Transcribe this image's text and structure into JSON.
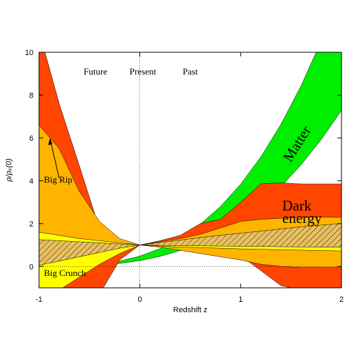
{
  "chart_data": {
    "type": "band",
    "xlabel": "Redshift z",
    "ylabel": "ρ/ρₓ(0)",
    "xlim": [
      -1,
      2
    ],
    "ylim": [
      -1,
      10
    ],
    "xticks": [
      -1,
      0,
      1,
      2
    ],
    "yticks": [
      0,
      2,
      4,
      6,
      8,
      10
    ],
    "x": [
      -1,
      -0.8,
      -0.6,
      -0.4,
      -0.2,
      0,
      0.2,
      0.4,
      0.6,
      0.8,
      1,
      1.2,
      1.4,
      1.6,
      1.8,
      2
    ],
    "series": [
      {
        "name": "Matter",
        "color": "#00ee00",
        "lower": [
          0,
          0,
          0.02,
          0.06,
          0.14,
          0.27,
          0.47,
          0.74,
          1.11,
          1.58,
          2.16,
          2.87,
          3.73,
          4.75,
          5.93,
          7.29
        ],
        "upper": [
          0,
          0,
          0.03,
          0.1,
          0.25,
          0.48,
          0.83,
          1.32,
          1.97,
          2.8,
          3.84,
          5.11,
          6.64,
          8.44,
          10.54,
          12.96
        ]
      },
      {
        "color": "#ff4500",
        "lower": [
          -3,
          -2.5,
          -1.8,
          -1.3,
          0.3,
          1,
          0.9,
          0.8,
          0.65,
          0.6,
          0.5,
          -0.2,
          -0.9,
          -1.1,
          -1.1,
          -1.1
        ],
        "upper": [
          11,
          7.6,
          4.7,
          1.75,
          1.15,
          1,
          1.2,
          1.45,
          2,
          2.2,
          3,
          3.85,
          3.9,
          3.85,
          3.85,
          3.85
        ]
      },
      {
        "color": "#ffb400",
        "lower": [
          -1.3,
          -0.6,
          0,
          0.5,
          0.85,
          1,
          0.9,
          0.75,
          0.6,
          0.45,
          0.3,
          0.1,
          0,
          -0.05,
          -0.05,
          -0.05
        ],
        "upper": [
          6.6,
          5.5,
          3.5,
          2.1,
          1.3,
          1,
          1.15,
          1.3,
          1.5,
          1.8,
          2.1,
          2.2,
          2.25,
          2.3,
          2.3,
          2.3
        ]
      },
      {
        "color": "#ffff00",
        "lower": [
          -1.5,
          -1.1,
          -0.5,
          0.1,
          0.6,
          1,
          0.95,
          0.9,
          0.88,
          0.85,
          0.82,
          0.8,
          0.78,
          0.76,
          0.74,
          0.72
        ],
        "upper": [
          1.6,
          1.45,
          1.3,
          1.2,
          1.1,
          1,
          1.1,
          1.15,
          1.2,
          1.3,
          1.4,
          1.5,
          1.6,
          1.7,
          1.8,
          1.85
        ]
      },
      {
        "color": "#e9b84a",
        "hatch": true,
        "lower": [
          0.05,
          0.25,
          0.45,
          0.65,
          0.85,
          1,
          0.98,
          0.97,
          0.96,
          0.95,
          0.94,
          0.93,
          0.92,
          0.91,
          0.9,
          0.9
        ],
        "upper": [
          1.25,
          1.2,
          1.15,
          1.1,
          1.05,
          1,
          1.12,
          1.23,
          1.35,
          1.45,
          1.55,
          1.65,
          1.75,
          1.85,
          1.93,
          2.0
        ]
      }
    ],
    "annotations": {
      "future": "Future",
      "present": "Present",
      "past": "Past",
      "big_rip": "Big Rip",
      "big_crunch": "Big Crunch",
      "dark_energy": [
        "Dark",
        "energy"
      ]
    }
  }
}
